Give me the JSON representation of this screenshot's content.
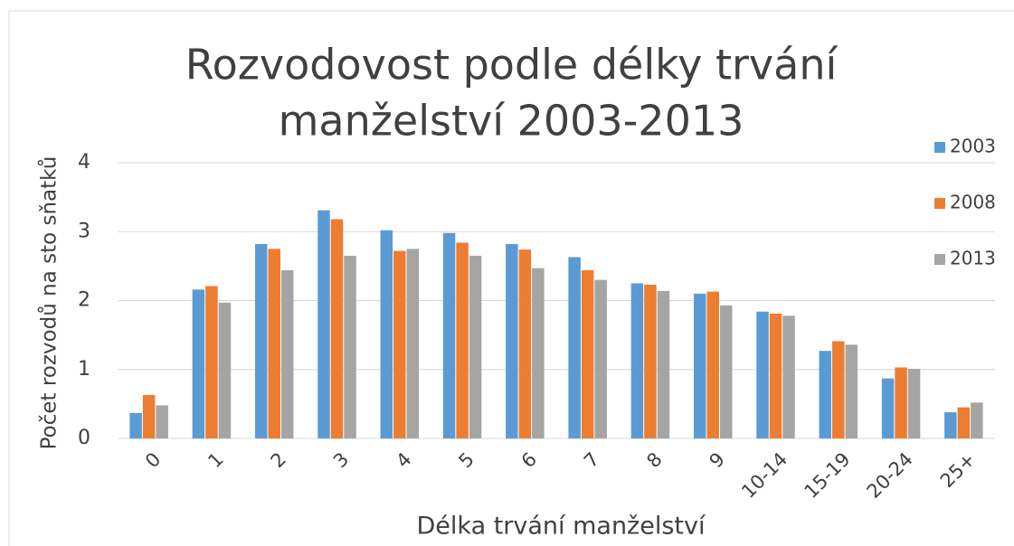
{
  "chart_data": {
    "type": "bar",
    "title": [
      "Rozvodovost podle délky trvání",
      "manželství 2003-2013"
    ],
    "x_label": "Délka trvání manželství",
    "y_label": "Počet rozvodů na sto sňatků",
    "categories": [
      "0",
      "1",
      "2",
      "3",
      "4",
      "5",
      "6",
      "7",
      "8",
      "9",
      "10-14",
      "15-19",
      "20-24",
      "25+"
    ],
    "series": [
      {
        "name": "2003",
        "color": "#5b9bd5",
        "values": [
          0.37,
          2.16,
          2.82,
          3.31,
          3.02,
          2.98,
          2.82,
          2.63,
          2.25,
          2.1,
          1.84,
          1.27,
          0.87,
          0.38
        ]
      },
      {
        "name": "2008",
        "color": "#ed7d31",
        "values": [
          0.63,
          2.21,
          2.75,
          3.18,
          2.72,
          2.84,
          2.74,
          2.44,
          2.23,
          2.13,
          1.81,
          1.41,
          1.03,
          0.45
        ]
      },
      {
        "name": "2013",
        "color": "#a5a5a5",
        "values": [
          0.48,
          1.97,
          2.44,
          2.65,
          2.75,
          2.65,
          2.47,
          2.3,
          2.14,
          1.93,
          1.78,
          1.36,
          1.01,
          0.52
        ]
      }
    ],
    "ylim": [
      0,
      4
    ],
    "yticks": [
      0,
      1,
      2,
      3,
      4
    ],
    "grid": true,
    "legend": "right"
  }
}
